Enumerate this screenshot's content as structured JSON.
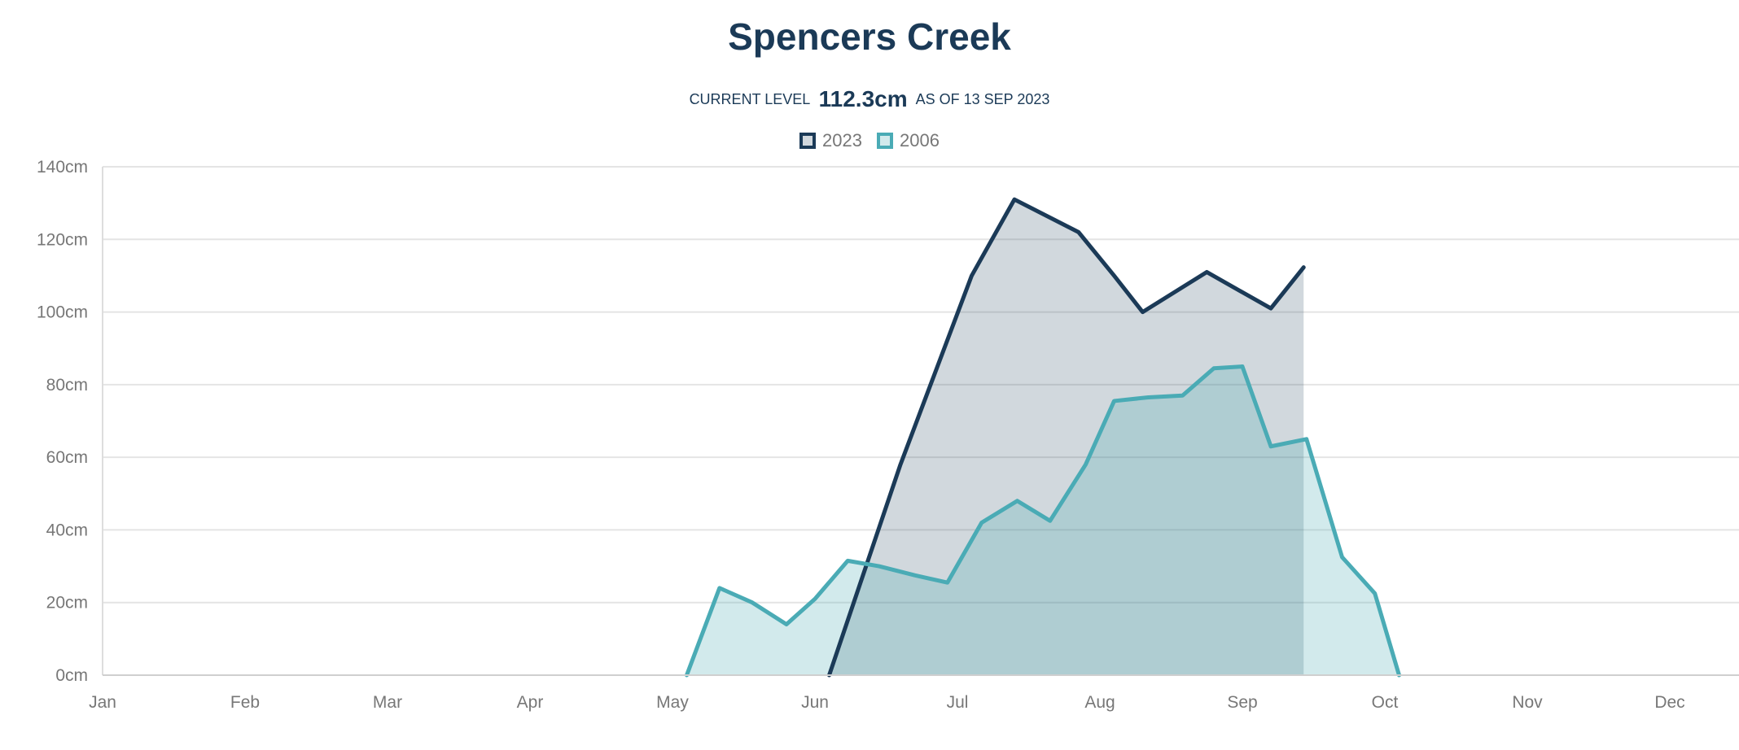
{
  "header": {
    "title": "Spencers Creek",
    "current_level_label": "CURRENT LEVEL",
    "current_level_value": "112.3cm",
    "as_of_label": "AS OF 13 SEP 2023"
  },
  "chart_data": {
    "type": "area",
    "title": "Spencers Creek",
    "x_unit": "month (0 = 1 Jan)",
    "xlim": [
      0,
      11.67
    ],
    "ylim": [
      0,
      140
    ],
    "y_ticks": [
      0,
      20,
      40,
      60,
      80,
      100,
      120,
      140
    ],
    "y_tick_labels": [
      "0cm",
      "20cm",
      "40cm",
      "60cm",
      "80cm",
      "100cm",
      "120cm",
      "140cm"
    ],
    "x_tick_labels": [
      "Jan",
      "Feb",
      "Mar",
      "Apr",
      "May",
      "Jun",
      "Jul",
      "Aug",
      "Sep",
      "Oct",
      "Nov",
      "Dec"
    ],
    "grid": true,
    "legend_position": "top-center",
    "series": [
      {
        "name": "2023",
        "color": "#1b3a57",
        "fill": "rgba(27,58,87,0.2)",
        "points": [
          [
            5.1,
            0
          ],
          [
            5.6,
            58
          ],
          [
            6.1,
            110
          ],
          [
            6.4,
            131
          ],
          [
            6.85,
            122
          ],
          [
            7.1,
            110
          ],
          [
            7.3,
            100
          ],
          [
            7.75,
            111
          ],
          [
            8.2,
            101
          ],
          [
            8.43,
            112.3
          ]
        ]
      },
      {
        "name": "2006",
        "color": "#4aabb5",
        "fill": "rgba(74,171,181,0.25)",
        "points": [
          [
            4.1,
            0
          ],
          [
            4.33,
            24
          ],
          [
            4.56,
            20
          ],
          [
            4.8,
            14
          ],
          [
            5.0,
            21
          ],
          [
            5.23,
            31.5
          ],
          [
            5.45,
            30
          ],
          [
            5.7,
            27.5
          ],
          [
            5.93,
            25.5
          ],
          [
            6.17,
            42
          ],
          [
            6.42,
            48
          ],
          [
            6.65,
            42.5
          ],
          [
            6.9,
            58
          ],
          [
            7.1,
            75.5
          ],
          [
            7.34,
            76.5
          ],
          [
            7.58,
            77
          ],
          [
            7.8,
            84.5
          ],
          [
            8.0,
            85
          ],
          [
            8.2,
            63
          ],
          [
            8.45,
            65
          ],
          [
            8.7,
            32.5
          ],
          [
            8.93,
            22.5
          ],
          [
            9.1,
            0
          ]
        ]
      }
    ]
  }
}
